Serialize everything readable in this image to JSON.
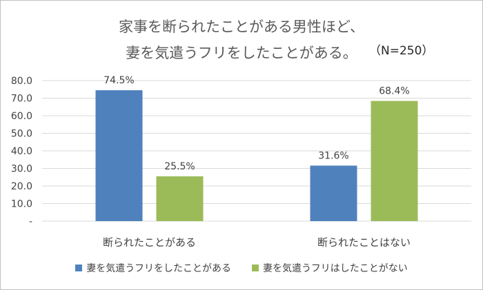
{
  "chart_data": {
    "type": "bar",
    "title_lines": [
      "家事を断られたことがある男性ほど、",
      "妻を気遣うフリをしたことがある。"
    ],
    "note": "（N=250）",
    "categories": [
      "断られたことがある",
      "断られたことはない"
    ],
    "series": [
      {
        "name": "妻を気遣うフリをしたことがある",
        "values": [
          74.5,
          31.6
        ],
        "labels": [
          "74.5%",
          "31.6%"
        ],
        "color": "#4f81bd"
      },
      {
        "name": "妻を気遣うフリはしたことがない",
        "values": [
          25.5,
          68.4
        ],
        "labels": [
          "25.5%",
          "68.4%"
        ],
        "color": "#9bbb59"
      }
    ],
    "ylim": [
      0,
      80
    ],
    "yticks": [
      0,
      10,
      20,
      30,
      40,
      50,
      60,
      70,
      80
    ],
    "ytick_labels": [
      "-",
      "10.0",
      "20.0",
      "30.0",
      "40.0",
      "50.0",
      "60.0",
      "70.0",
      "80.0"
    ],
    "grid": true,
    "legend_position": "bottom"
  }
}
